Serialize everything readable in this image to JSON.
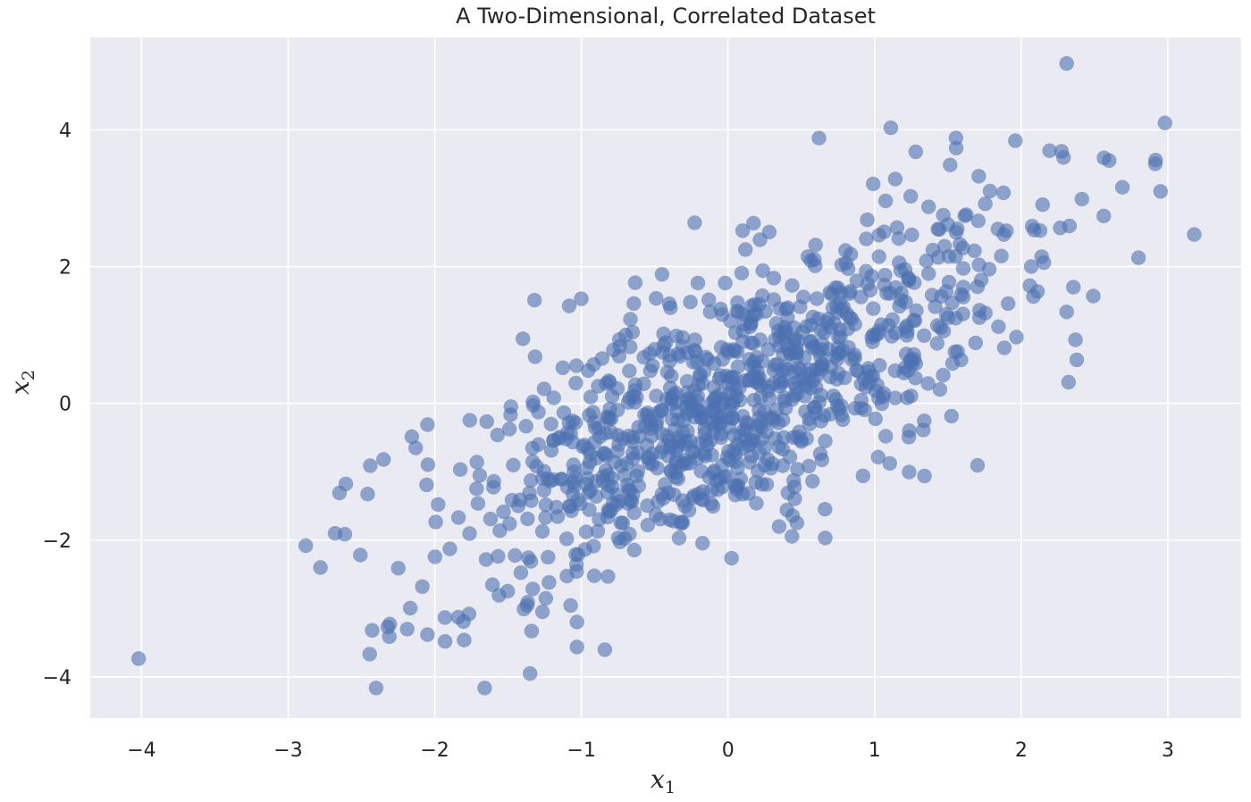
{
  "chart_data": {
    "type": "scatter",
    "title": "A Two-Dimensional, Correlated Dataset",
    "xlabel": "x",
    "xlabel_sub": "1",
    "ylabel": "x",
    "ylabel_sub": "2",
    "xlim": [
      -4.35,
      3.5
    ],
    "ylim": [
      -4.6,
      5.35
    ],
    "xticks": [
      -4,
      -3,
      -2,
      -1,
      0,
      1,
      2,
      3
    ],
    "yticks": [
      -4,
      -2,
      0,
      2,
      4
    ],
    "grid": true,
    "background_color": "#eaeaf2",
    "point_color": "#4c72b0",
    "point_opacity": 0.6,
    "n_points": 1000,
    "correlation": 0.75,
    "x_std": 1.0,
    "y_std": 1.4,
    "outliers": [
      [
        -4.02,
        -3.73
      ],
      [
        2.31,
        4.97
      ],
      [
        2.98,
        4.1
      ],
      [
        1.11,
        4.03
      ],
      [
        0.62,
        3.88
      ],
      [
        3.18,
        2.47
      ],
      [
        2.95,
        3.1
      ],
      [
        2.69,
        3.16
      ],
      [
        2.6,
        3.55
      ],
      [
        2.8,
        2.13
      ],
      [
        -2.88,
        -2.08
      ],
      [
        -2.78,
        -2.4
      ],
      [
        -2.68,
        -1.9
      ],
      [
        -2.65,
        -1.31
      ],
      [
        -2.4,
        -4.16
      ],
      [
        -1.66,
        -4.16
      ],
      [
        -1.35,
        -3.95
      ],
      [
        -1.03,
        -3.56
      ],
      [
        -0.84,
        -3.6
      ],
      [
        -2.32,
        -3.27
      ],
      [
        -2.31,
        -3.41
      ],
      [
        -2.05,
        -3.38
      ],
      [
        -1.93,
        -3.48
      ],
      [
        -1.8,
        -3.46
      ],
      [
        -2.44,
        -0.91
      ],
      [
        -2.35,
        -0.82
      ],
      [
        -1.32,
        1.51
      ],
      [
        2.37,
        0.93
      ],
      [
        1.34,
        -1.06
      ],
      [
        1.28,
        3.68
      ],
      [
        1.96,
        3.84
      ],
      [
        0.99,
        3.21
      ],
      [
        -2.13,
        -0.65
      ],
      [
        -2.05,
        -0.31
      ]
    ]
  }
}
